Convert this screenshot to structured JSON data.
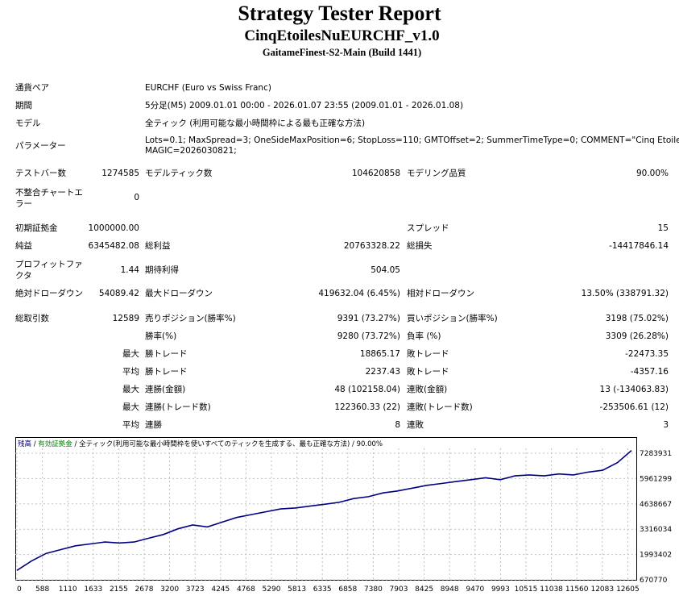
{
  "header": {
    "title": "Strategy Tester Report",
    "ea_name": "CinqEtoilesNuEURCHF_v1.0",
    "server": "GaitameFinest-S2-Main (Build 1441)"
  },
  "info": {
    "symbol_label": "通貨ペア",
    "symbol_value": "EURCHF (Euro vs Swiss Franc)",
    "period_label": "期間",
    "period_value": "5分足(M5) 2009.01.01 00:00 - 2026.01.07 23:55 (2009.01.01 - 2026.01.08)",
    "model_label": "モデル",
    "model_value": "全ティック (利用可能な最小時間枠による最も正確な方法)",
    "params_label": "パラメーター",
    "params_line1": "Lots=0.1; MaxSpread=3; OneSideMaxPosition=6; StopLoss=110; GMTOffset=2; SummerTimeType=0; COMMENT=\"Cinq Etoiles Nu\";",
    "params_line2": "MAGIC=2026030821;"
  },
  "stats": {
    "bars_label": "テストバー数",
    "bars_value": "1274585",
    "ticks_label": "モデルティック数",
    "ticks_value": "104620858",
    "quality_label": "モデリング品質",
    "quality_value": "90.00%",
    "mismatch_label": "不整合チャートエラー",
    "mismatch_value": "0",
    "deposit_label": "初期証拠金",
    "deposit_value": "1000000.00",
    "spread_label": "スプレッド",
    "spread_value": "15",
    "net_label": "純益",
    "net_value": "6345482.08",
    "gross_profit_label": "総利益",
    "gross_profit_value": "20763328.22",
    "gross_loss_label": "総損失",
    "gross_loss_value": "-14417846.14",
    "pf_label": "プロフィットファクタ",
    "pf_value": "1.44",
    "expected_label": "期待利得",
    "expected_value": "504.05",
    "abs_dd_label": "絶対ドローダウン",
    "abs_dd_value": "54089.42",
    "max_dd_label": "最大ドローダウン",
    "max_dd_value": "419632.04 (6.45%)",
    "rel_dd_label": "相対ドローダウン",
    "rel_dd_value": "13.50% (338791.32)",
    "trades_label": "総取引数",
    "trades_value": "12589",
    "short_label": "売りポジション(勝率%)",
    "short_value": "9391 (73.27%)",
    "long_label": "買いポジション(勝率%)",
    "long_value": "3198 (75.02%)",
    "win_label": "勝率(%)",
    "win_value": "9280 (73.72%)",
    "loss_label": "負率 (%)",
    "loss_value": "3309 (26.28%)",
    "max_word": "最大",
    "avg_word": "平均",
    "largest_win_label": "勝トレード",
    "largest_win_value": "18865.17",
    "largest_loss_label": "敗トレード",
    "largest_loss_value": "-22473.35",
    "avg_win_label": "勝トレード",
    "avg_win_value": "2237.43",
    "avg_loss_label": "敗トレード",
    "avg_loss_value": "-4357.16",
    "cons_win_label": "連勝(金額)",
    "cons_win_value": "48 (102158.04)",
    "cons_loss_label": "連敗(金額)",
    "cons_loss_value": "13 (-134063.83)",
    "cons_profit_label": "連勝(トレード数)",
    "cons_profit_value": "122360.33 (22)",
    "cons_lossamt_label": "連敗(トレード数)",
    "cons_lossamt_value": "-253506.61 (12)",
    "avg_cons_win_label": "連勝",
    "avg_cons_win_value": "8",
    "avg_cons_loss_label": "連敗",
    "avg_cons_loss_value": "3"
  },
  "chart_data": {
    "type": "line",
    "legend": {
      "balance": "残高",
      "sep1": " / ",
      "equity": "有効証拠金",
      "sep2": " / ",
      "model": "全ティック(利用可能な最小時間枠を使いすべてのティックを生成する、最も正確な方法)",
      "sep3": " / ",
      "quality": "90.00%"
    },
    "x_ticks": [
      "0",
      "588",
      "1110",
      "1633",
      "2155",
      "2678",
      "3200",
      "3723",
      "4245",
      "4768",
      "5290",
      "5813",
      "6335",
      "6858",
      "7380",
      "7903",
      "8425",
      "8948",
      "9470",
      "9993",
      "10515",
      "11038",
      "11560",
      "12083",
      "12605"
    ],
    "y_ticks": [
      "7283931",
      "5961299",
      "4638667",
      "3316034",
      "1993402",
      "670770"
    ],
    "ylim": [
      670770,
      7283931
    ],
    "xlim": [
      0,
      12589
    ],
    "series": [
      {
        "x": [
          0,
          300,
          600,
          900,
          1200,
          1500,
          1800,
          2100,
          2400,
          2700,
          3000,
          3300,
          3600,
          3900,
          4200,
          4500,
          4800,
          5100,
          5400,
          5700,
          6000,
          6300,
          6600,
          6900,
          7200,
          7500,
          7800,
          8100,
          8400,
          8700,
          9000,
          9300,
          9600,
          9900,
          10200,
          10500,
          10800,
          11100,
          11400,
          11700,
          12000,
          12300,
          12589
        ],
        "values": [
          1000000,
          1500000,
          1900000,
          2100000,
          2300000,
          2400000,
          2500000,
          2450000,
          2500000,
          2700000,
          2900000,
          3200000,
          3400000,
          3300000,
          3550000,
          3800000,
          3950000,
          4100000,
          4250000,
          4300000,
          4400000,
          4500000,
          4600000,
          4800000,
          4900000,
          5100000,
          5200000,
          5350000,
          5500000,
          5600000,
          5700000,
          5800000,
          5900000,
          5800000,
          6000000,
          6050000,
          6000000,
          6100000,
          6050000,
          6200000,
          6300000,
          6700000,
          7345482
        ]
      }
    ],
    "colors": {
      "line": "#000080",
      "grid": "#c0c0c0",
      "balance_label": "#000080",
      "equity_label": "#008000"
    },
    "grid": true
  }
}
